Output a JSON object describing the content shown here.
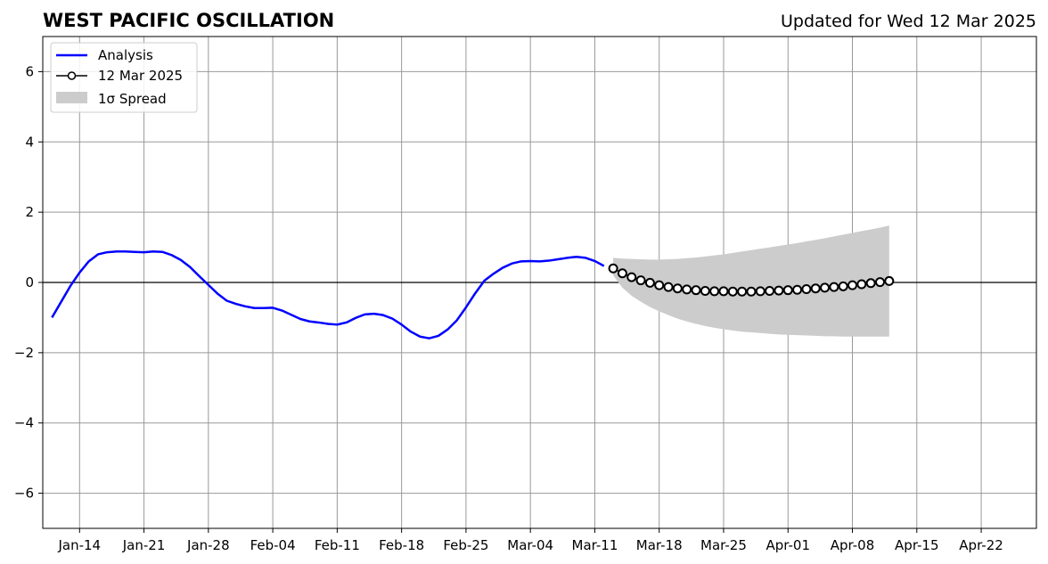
{
  "chart_data": {
    "type": "line",
    "title": "WEST PACIFIC OSCILLATION",
    "subtitle": "Updated for Wed 12 Mar 2025",
    "xlabel": "",
    "ylabel": "",
    "xlim": [
      "2025-01-10",
      "2025-04-28"
    ],
    "ylim": [
      -7,
      7
    ],
    "grid": true,
    "legend_position": "top-left",
    "x_ticks": [
      "2025-01-14",
      "2025-01-21",
      "2025-01-28",
      "2025-02-04",
      "2025-02-11",
      "2025-02-18",
      "2025-02-25",
      "2025-03-04",
      "2025-03-11",
      "2025-03-18",
      "2025-03-25",
      "2025-04-01",
      "2025-04-08",
      "2025-04-15",
      "2025-04-22"
    ],
    "x_tick_labels": [
      "Jan-14",
      "Jan-21",
      "Jan-28",
      "Feb-04",
      "Feb-11",
      "Feb-18",
      "Feb-25",
      "Mar-04",
      "Mar-11",
      "Mar-18",
      "Mar-25",
      "Apr-01",
      "Apr-08",
      "Apr-15",
      "Apr-22"
    ],
    "y_ticks": [
      -6,
      -4,
      -2,
      0,
      2,
      4,
      6
    ],
    "y_tick_labels": [
      "−6",
      "−4",
      "−2",
      "0",
      "2",
      "4",
      "6"
    ],
    "series": [
      {
        "name": "Analysis",
        "color": "#0000ff",
        "style": "line",
        "x": [
          "2025-01-11",
          "2025-01-12",
          "2025-01-13",
          "2025-01-14",
          "2025-01-15",
          "2025-01-16",
          "2025-01-17",
          "2025-01-18",
          "2025-01-19",
          "2025-01-20",
          "2025-01-21",
          "2025-01-22",
          "2025-01-23",
          "2025-01-24",
          "2025-01-25",
          "2025-01-26",
          "2025-01-27",
          "2025-01-28",
          "2025-01-29",
          "2025-01-30",
          "2025-01-31",
          "2025-02-01",
          "2025-02-02",
          "2025-02-03",
          "2025-02-04",
          "2025-02-05",
          "2025-02-06",
          "2025-02-07",
          "2025-02-08",
          "2025-02-09",
          "2025-02-10",
          "2025-02-11",
          "2025-02-12",
          "2025-02-13",
          "2025-02-14",
          "2025-02-15",
          "2025-02-16",
          "2025-02-17",
          "2025-02-18",
          "2025-02-19",
          "2025-02-20",
          "2025-02-21",
          "2025-02-22",
          "2025-02-23",
          "2025-02-24",
          "2025-02-25",
          "2025-02-26",
          "2025-02-27",
          "2025-02-28",
          "2025-03-01",
          "2025-03-02",
          "2025-03-03",
          "2025-03-04",
          "2025-03-05",
          "2025-03-06",
          "2025-03-07",
          "2025-03-08",
          "2025-03-09",
          "2025-03-10",
          "2025-03-11",
          "2025-03-12"
        ],
        "y": [
          -1.0,
          -0.55,
          -0.1,
          0.28,
          0.6,
          0.8,
          0.86,
          0.88,
          0.88,
          0.87,
          0.86,
          0.88,
          0.87,
          0.78,
          0.64,
          0.44,
          0.18,
          -0.07,
          -0.32,
          -0.52,
          -0.61,
          -0.68,
          -0.73,
          -0.73,
          -0.72,
          -0.8,
          -0.92,
          -1.04,
          -1.11,
          -1.14,
          -1.18,
          -1.2,
          -1.14,
          -1.01,
          -0.91,
          -0.89,
          -0.93,
          -1.03,
          -1.2,
          -1.4,
          -1.54,
          -1.59,
          -1.52,
          -1.34,
          -1.08,
          -0.71,
          -0.31,
          0.05,
          0.25,
          0.42,
          0.54,
          0.6,
          0.61,
          0.6,
          0.62,
          0.66,
          0.7,
          0.73,
          0.7,
          0.61,
          0.47
        ]
      },
      {
        "name": "12 Mar 2025",
        "color": "#000000",
        "marker_fill": "#ffffff",
        "style": "line-markers",
        "x": [
          "2025-03-13",
          "2025-03-14",
          "2025-03-15",
          "2025-03-16",
          "2025-03-17",
          "2025-03-18",
          "2025-03-19",
          "2025-03-20",
          "2025-03-21",
          "2025-03-22",
          "2025-03-23",
          "2025-03-24",
          "2025-03-25",
          "2025-03-26",
          "2025-03-27",
          "2025-03-28",
          "2025-03-29",
          "2025-03-30",
          "2025-03-31",
          "2025-04-01",
          "2025-04-02",
          "2025-04-03",
          "2025-04-04",
          "2025-04-05",
          "2025-04-06",
          "2025-04-07",
          "2025-04-08",
          "2025-04-09",
          "2025-04-10",
          "2025-04-11",
          "2025-04-12"
        ],
        "y": [
          0.4,
          0.26,
          0.15,
          0.06,
          -0.01,
          -0.08,
          -0.13,
          -0.17,
          -0.2,
          -0.22,
          -0.24,
          -0.25,
          -0.25,
          -0.26,
          -0.26,
          -0.26,
          -0.25,
          -0.24,
          -0.23,
          -0.22,
          -0.21,
          -0.19,
          -0.17,
          -0.15,
          -0.13,
          -0.11,
          -0.08,
          -0.05,
          -0.02,
          0.01,
          0.04
        ]
      }
    ],
    "spread": {
      "name": "1σ Spread",
      "color": "#cccccc",
      "x": [
        "2025-03-13",
        "2025-03-14",
        "2025-03-15",
        "2025-03-16",
        "2025-03-17",
        "2025-03-18",
        "2025-03-19",
        "2025-03-20",
        "2025-03-21",
        "2025-03-22",
        "2025-03-23",
        "2025-03-24",
        "2025-03-25",
        "2025-03-26",
        "2025-03-27",
        "2025-03-28",
        "2025-03-29",
        "2025-03-30",
        "2025-03-31",
        "2025-04-01",
        "2025-04-02",
        "2025-04-03",
        "2025-04-04",
        "2025-04-05",
        "2025-04-06",
        "2025-04-07",
        "2025-04-08",
        "2025-04-09",
        "2025-04-10",
        "2025-04-11",
        "2025-04-12"
      ],
      "upper": [
        0.7,
        0.68,
        0.67,
        0.66,
        0.65,
        0.65,
        0.66,
        0.67,
        0.69,
        0.71,
        0.74,
        0.77,
        0.8,
        0.84,
        0.88,
        0.92,
        0.96,
        1.0,
        1.04,
        1.08,
        1.12,
        1.17,
        1.21,
        1.26,
        1.31,
        1.36,
        1.41,
        1.46,
        1.51,
        1.56,
        1.62
      ],
      "lower": [
        0.2,
        -0.15,
        -0.38,
        -0.55,
        -0.7,
        -0.82,
        -0.93,
        -1.03,
        -1.11,
        -1.18,
        -1.24,
        -1.29,
        -1.33,
        -1.37,
        -1.4,
        -1.42,
        -1.44,
        -1.46,
        -1.48,
        -1.49,
        -1.5,
        -1.51,
        -1.52,
        -1.53,
        -1.53,
        -1.54,
        -1.54,
        -1.54,
        -1.54,
        -1.54,
        -1.54
      ]
    }
  }
}
